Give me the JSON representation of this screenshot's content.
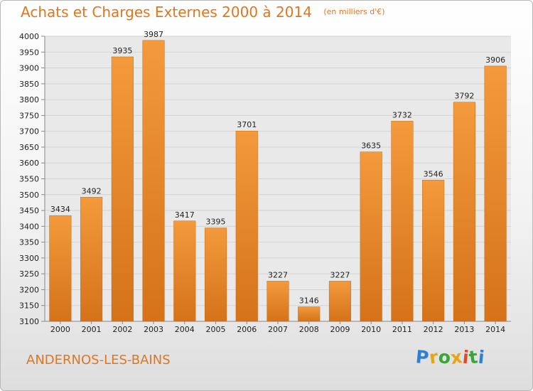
{
  "chart_data": {
    "type": "bar",
    "title": "Achats et Charges Externes 2000 à 2014",
    "subtitle": "(en milliers d'€)",
    "categories": [
      "2000",
      "2001",
      "2002",
      "2003",
      "2004",
      "2005",
      "2006",
      "2007",
      "2008",
      "2009",
      "2010",
      "2011",
      "2012",
      "2013",
      "2014"
    ],
    "values": [
      3434,
      3492,
      3935,
      3987,
      3417,
      3395,
      3701,
      3227,
      3146,
      3227,
      3635,
      3732,
      3546,
      3792,
      3906
    ],
    "ylim": [
      3100,
      4000
    ],
    "ytick_step": 50,
    "grid": true,
    "legend": "none",
    "bar_color": "#f39a3c",
    "bar_color_dark": "#d5721a"
  },
  "footer": {
    "city": "ANDERNOS-LES-BAINS",
    "logo_letters": [
      "P",
      "r",
      "o",
      "x",
      "i",
      "t",
      "i"
    ],
    "logo_colors": [
      "#2e7fd6",
      "#e8a31a",
      "#3aa63a",
      "#e8a31a",
      "#e04a2a",
      "#3aa63a",
      "#2e7fd6"
    ]
  }
}
